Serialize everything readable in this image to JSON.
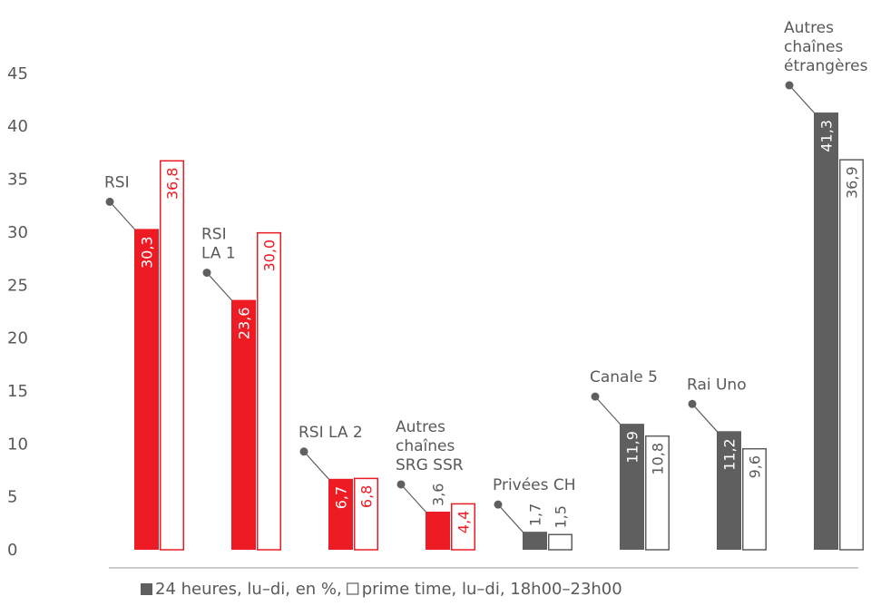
{
  "chart_data": {
    "type": "bar",
    "title": "",
    "xlabel": "",
    "ylabel": "",
    "ylim": [
      0,
      45
    ],
    "yticks": [
      0,
      5,
      10,
      15,
      20,
      25,
      30,
      35,
      40,
      45
    ],
    "grid": false,
    "categories": [
      [
        "RSI"
      ],
      [
        "RSI",
        "LA 1"
      ],
      [
        "RSI LA 2"
      ],
      [
        "Autres",
        "chaînes",
        "SRG SSR"
      ],
      [
        "Privées CH"
      ],
      [
        "Canale 5"
      ],
      [
        "Rai Uno"
      ],
      [
        "Autres",
        "chaînes",
        "étrangères"
      ]
    ],
    "series": [
      {
        "name": "24 heures, lu–di, en %,",
        "style": "filled",
        "values": [
          "30,3",
          "23,6",
          "6,7",
          "3,6",
          "1,7",
          "11,9",
          "11,2",
          "41,3"
        ]
      },
      {
        "name": "prime time, lu–di, 18h00–23h00",
        "style": "outline",
        "values": [
          "36,8",
          "30,0",
          "6,8",
          "4,4",
          "1,5",
          "10,8",
          "9,6",
          "36,9"
        ]
      }
    ],
    "colors": [
      "#ED1C24",
      "#ED1C24",
      "#ED1C24",
      "#ED1C24",
      "#5F5F5F",
      "#5F5F5F",
      "#5F5F5F",
      "#5F5F5F"
    ],
    "legend_position": "bottom"
  }
}
